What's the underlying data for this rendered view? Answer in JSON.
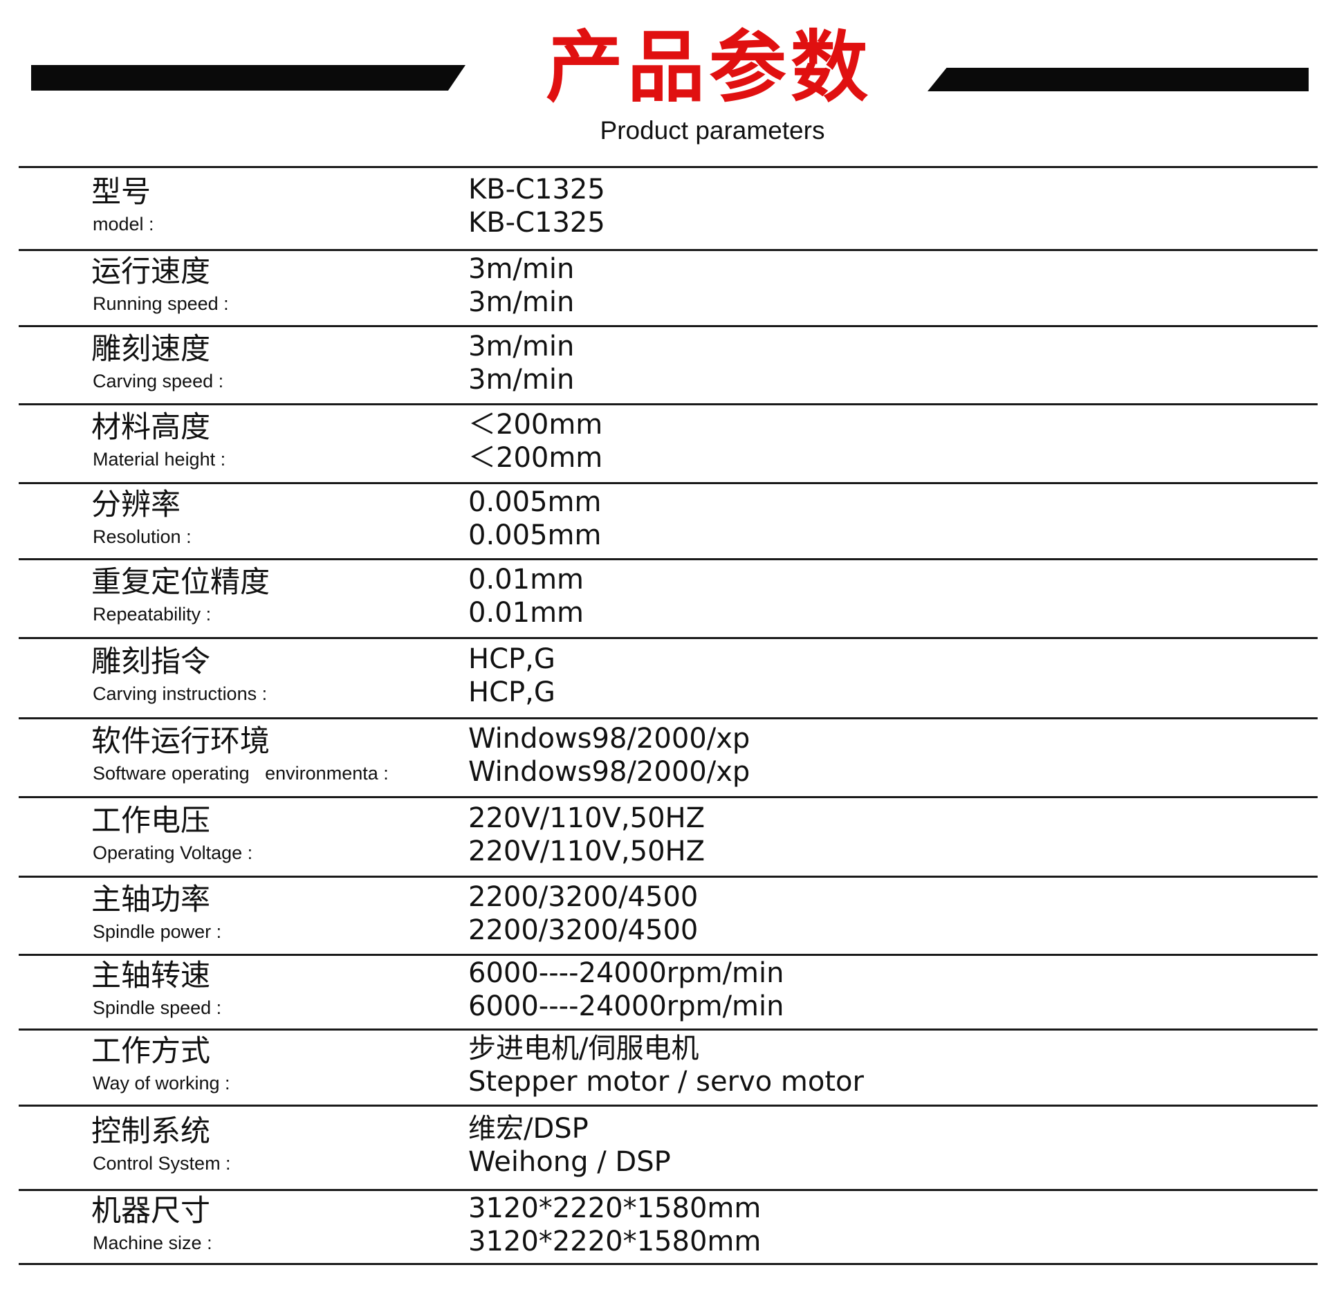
{
  "header": {
    "title": "产品参数",
    "subtitle": "Product parameters",
    "title_color": "#e01010"
  },
  "rows": [
    {
      "cn": "型号",
      "en": "model :",
      "v1": "KB-C1325",
      "v2": "KB-C1325"
    },
    {
      "cn": "运行速度",
      "en": "Running speed :",
      "v1": "3m/min",
      "v2": "3m/min"
    },
    {
      "cn": "雕刻速度",
      "en": "Carving speed :",
      "v1": "3m/min",
      "v2": "3m/min"
    },
    {
      "cn": "材料高度",
      "en": "Material height :",
      "v1": "＜200mm",
      "v2": "＜200mm"
    },
    {
      "cn": "分辨率",
      "en": "Resolution :",
      "v1": "0.005mm",
      "v2": "0.005mm"
    },
    {
      "cn": "重复定位精度",
      "en": "Repeatability :",
      "v1": "0.01mm",
      "v2": "0.01mm"
    },
    {
      "cn": "雕刻指令",
      "en": "Carving instructions :",
      "v1": "HCP,G",
      "v2": "HCP,G"
    },
    {
      "cn": "软件运行环境",
      "en": "Software operating   environmenta :",
      "v1": "Windows98/2000/xp",
      "v2": "Windows98/2000/xp"
    },
    {
      "cn": "工作电压",
      "en": "Operating Voltage :",
      "v1": "220V/110V,50HZ",
      "v2": "220V/110V,50HZ"
    },
    {
      "cn": "主轴功率",
      "en": "Spindle power :",
      "v1": "2200/3200/4500",
      "v2": "2200/3200/4500"
    },
    {
      "cn": "主轴转速",
      "en": "Spindle speed :",
      "v1": "6000----24000rpm/min",
      "v2": "6000----24000rpm/min"
    },
    {
      "cn": "工作方式",
      "en": "Way of working :",
      "v1": "步进电机/伺服电机",
      "v2": "Stepper motor / servo motor"
    },
    {
      "cn": "控制系统",
      "en": "Control System :",
      "v1": "维宏/DSP",
      "v2": "Weihong / DSP"
    },
    {
      "cn": "机器尺寸",
      "en": "Machine size :",
      "v1": "3120*2220*1580mm",
      "v2": "3120*2220*1580mm"
    }
  ]
}
